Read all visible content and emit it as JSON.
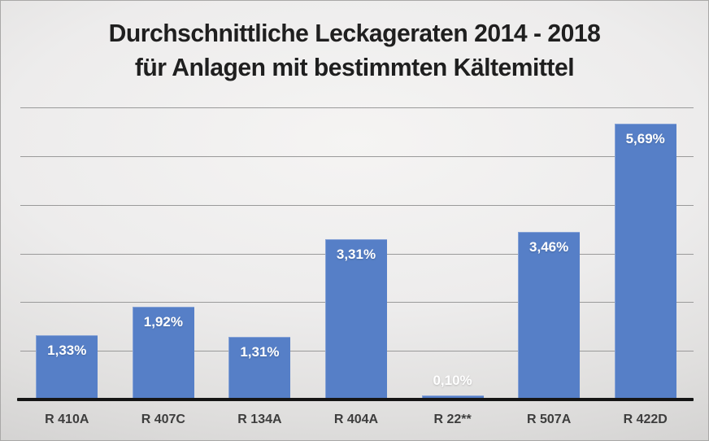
{
  "chart_data": {
    "type": "bar",
    "title": "Durchschnittliche Leckageraten 2014 - 2018 für Anlagen mit bestimmten Kältemittel",
    "title_line1": "Durchschnittliche Leckageraten 2014 - 2018",
    "title_line2": "für Anlagen mit bestimmten Kältemittel",
    "categories": [
      "R 410A",
      "R 407C",
      "R 134A",
      "R 404A",
      "R 22**",
      "R 507A",
      "R 422D"
    ],
    "values": [
      1.33,
      1.92,
      1.31,
      3.31,
      0.1,
      3.46,
      5.69
    ],
    "value_labels": [
      "1,33%",
      "1,92%",
      "1,31%",
      "3,31%",
      "0,10%",
      "3,46%",
      "5,69%"
    ],
    "xlabel": "",
    "ylabel": "",
    "ylim": [
      0,
      6
    ],
    "gridline_step": 1,
    "grid": true,
    "legend": false,
    "y_tick_labels_visible": false,
    "colors": {
      "bar": "#567fc7",
      "value_label": "#ffffff",
      "category_label": "#3d3d3d",
      "gridline": "#9a9a9a",
      "axis": "#151515",
      "title": "#1f1f1f"
    }
  }
}
